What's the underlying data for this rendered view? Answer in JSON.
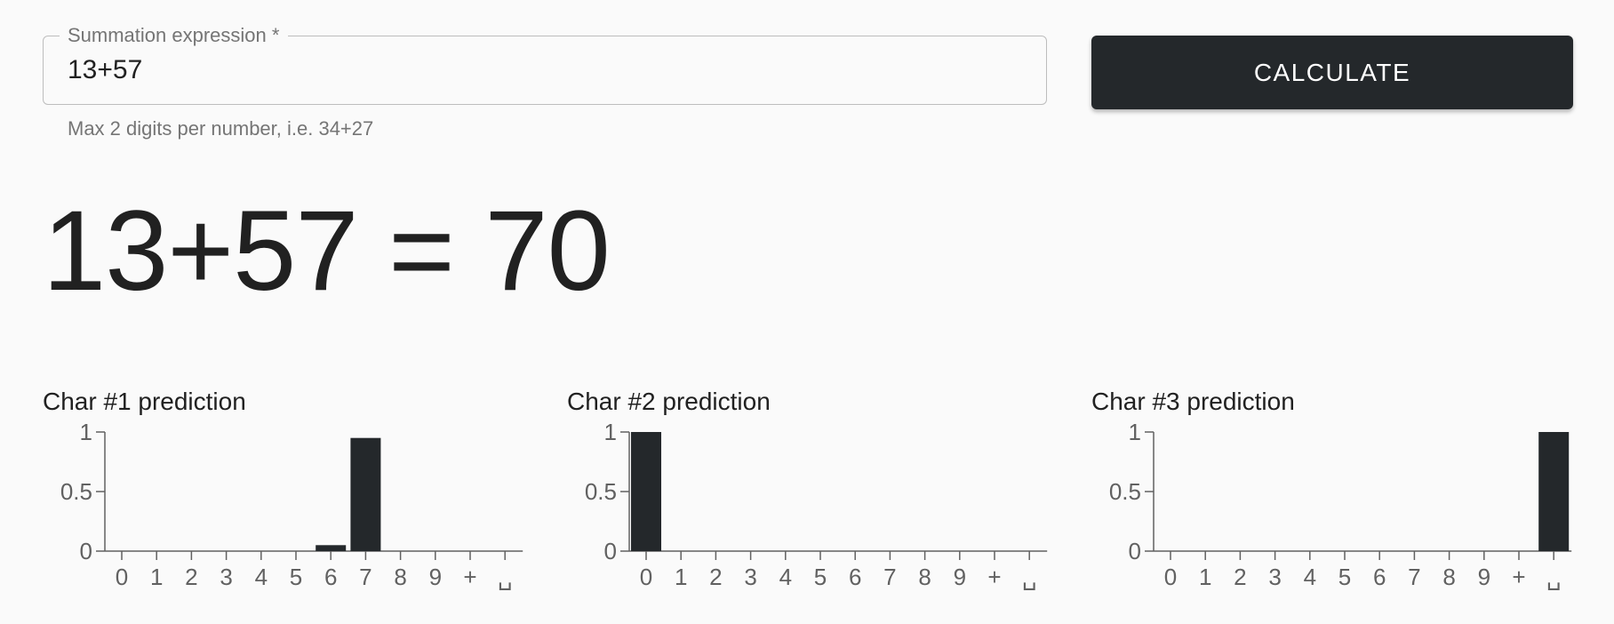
{
  "form": {
    "label": "Summation expression *",
    "value": "13+57",
    "helper": "Max 2 digits per number, i.e. 34+27"
  },
  "button": {
    "label": "CALCULATE"
  },
  "result": {
    "text": "13+57 = 70"
  },
  "colors": {
    "bar": "#24282b",
    "axis": "#616161",
    "button_bg": "#24282b"
  },
  "chart_data": [
    {
      "type": "bar",
      "title": "Char #1 prediction",
      "categories": [
        "0",
        "1",
        "2",
        "3",
        "4",
        "5",
        "6",
        "7",
        "8",
        "9",
        "+",
        "␣"
      ],
      "values": [
        0,
        0,
        0,
        0,
        0,
        0,
        0.05,
        0.95,
        0,
        0,
        0,
        0
      ],
      "ylim": [
        0,
        1
      ],
      "yticks": [
        "0",
        "0.5",
        "1"
      ],
      "xlabel": "",
      "ylabel": ""
    },
    {
      "type": "bar",
      "title": "Char #2 prediction",
      "categories": [
        "0",
        "1",
        "2",
        "3",
        "4",
        "5",
        "6",
        "7",
        "8",
        "9",
        "+",
        "␣"
      ],
      "values": [
        1.0,
        0,
        0,
        0,
        0,
        0,
        0,
        0,
        0,
        0,
        0,
        0
      ],
      "ylim": [
        0,
        1
      ],
      "yticks": [
        "0",
        "0.5",
        "1"
      ],
      "xlabel": "",
      "ylabel": ""
    },
    {
      "type": "bar",
      "title": "Char #3 prediction",
      "categories": [
        "0",
        "1",
        "2",
        "3",
        "4",
        "5",
        "6",
        "7",
        "8",
        "9",
        "+",
        "␣"
      ],
      "values": [
        0,
        0,
        0,
        0,
        0,
        0,
        0,
        0,
        0,
        0,
        0,
        1.0
      ],
      "ylim": [
        0,
        1
      ],
      "yticks": [
        "0",
        "0.5",
        "1"
      ],
      "xlabel": "",
      "ylabel": ""
    }
  ]
}
